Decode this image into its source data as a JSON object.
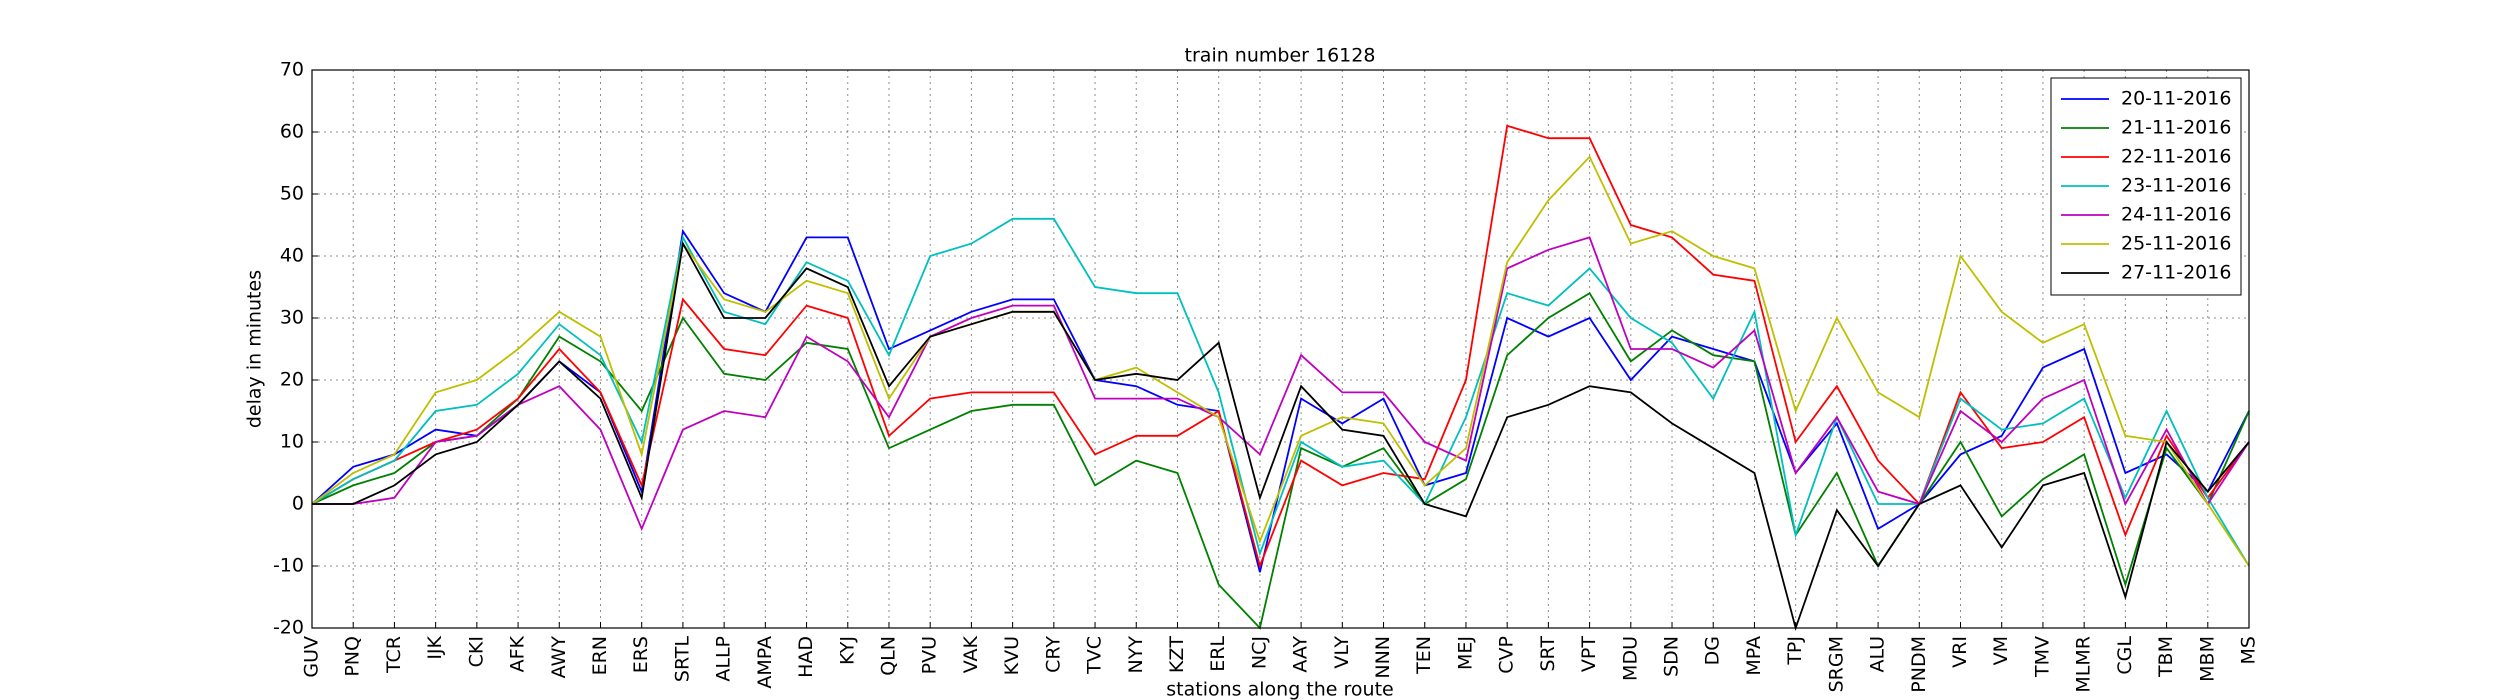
{
  "chart_data": {
    "type": "line",
    "title": "train number 16128",
    "x_label": "stations along the route",
    "y_label": "delay in minutes",
    "categories": [
      "GUV",
      "PNQ",
      "TCR",
      "IJK",
      "CKI",
      "AFK",
      "AWY",
      "ERN",
      "ERS",
      "SRTL",
      "ALLP",
      "AMPA",
      "HAD",
      "KYJ",
      "QLN",
      "PVU",
      "VAK",
      "KVU",
      "CRY",
      "TVC",
      "NYY",
      "KZT",
      "ERL",
      "NCJ",
      "AAY",
      "VLY",
      "NNN",
      "TEN",
      "MEJ",
      "CVP",
      "SRT",
      "VPT",
      "MDU",
      "SDN",
      "DG",
      "MPA",
      "TPJ",
      "SRGM",
      "ALU",
      "PNDM",
      "VRI",
      "VM",
      "TMV",
      "MLMR",
      "CGL",
      "TBM",
      "MBM",
      "MS"
    ],
    "series": [
      {
        "name": "20-11-2016",
        "color": "#0000ff",
        "values": [
          0,
          6,
          8,
          12,
          11,
          16,
          23,
          18,
          2,
          44,
          34,
          31,
          43,
          43,
          25,
          28,
          31,
          33,
          33,
          20,
          19,
          16,
          15,
          -11,
          17,
          13,
          17,
          3,
          5,
          30,
          27,
          30,
          20,
          27,
          25,
          23,
          5,
          13,
          -4,
          0,
          8,
          11,
          22,
          25,
          5,
          8,
          2,
          15
        ]
      },
      {
        "name": "21-11-2016",
        "color": "#008000",
        "values": [
          0,
          3,
          5,
          10,
          11,
          17,
          27,
          23,
          15,
          30,
          21,
          20,
          26,
          25,
          9,
          12,
          15,
          16,
          16,
          3,
          7,
          5,
          -13,
          -20,
          9,
          6,
          9,
          0,
          4,
          24,
          30,
          34,
          23,
          28,
          24,
          23,
          -5,
          5,
          -10,
          0,
          10,
          -2,
          4,
          8,
          -13,
          9,
          0,
          15
        ]
      },
      {
        "name": "22-11-2016",
        "color": "#ff0000",
        "values": [
          0,
          4,
          7,
          10,
          12,
          17,
          25,
          18,
          3,
          33,
          25,
          24,
          32,
          30,
          11,
          17,
          18,
          18,
          18,
          8,
          11,
          11,
          15,
          -10,
          7,
          3,
          5,
          4,
          20,
          61,
          59,
          59,
          45,
          43,
          37,
          36,
          10,
          19,
          7,
          0,
          18,
          9,
          10,
          14,
          -5,
          11,
          1,
          10
        ]
      },
      {
        "name": "23-11-2016",
        "color": "#00bfbf",
        "values": [
          0,
          4,
          7,
          15,
          16,
          21,
          29,
          24,
          10,
          43,
          31,
          29,
          39,
          36,
          24,
          40,
          42,
          46,
          46,
          35,
          34,
          34,
          18,
          -8,
          10,
          6,
          7,
          0,
          14,
          34,
          32,
          38,
          30,
          26,
          17,
          31,
          -5,
          14,
          0,
          0,
          17,
          12,
          13,
          17,
          1,
          15,
          1,
          -10
        ]
      },
      {
        "name": "24-11-2016",
        "color": "#bf00bf",
        "values": [
          0,
          0,
          1,
          10,
          11,
          16,
          19,
          12,
          -4,
          12,
          15,
          14,
          27,
          23,
          14,
          27,
          30,
          32,
          32,
          17,
          17,
          17,
          14,
          8,
          24,
          18,
          18,
          10,
          7,
          38,
          41,
          43,
          25,
          25,
          22,
          28,
          5,
          14,
          2,
          0,
          15,
          10,
          17,
          20,
          0,
          12,
          0,
          10
        ]
      },
      {
        "name": "25-11-2016",
        "color": "#bfbf00",
        "values": [
          0,
          5,
          8,
          18,
          20,
          25,
          31,
          27,
          8,
          42,
          33,
          31,
          36,
          34,
          17,
          27,
          29,
          31,
          31,
          20,
          22,
          18,
          14,
          -6,
          11,
          14,
          13,
          3,
          9,
          39,
          49,
          56,
          42,
          44,
          40,
          38,
          15,
          30,
          18,
          14,
          40,
          31,
          26,
          29,
          11,
          10,
          0,
          -10
        ]
      },
      {
        "name": "27-11-2016",
        "color": "#000000",
        "values": [
          0,
          0,
          3,
          8,
          10,
          16,
          23,
          17,
          1,
          42,
          30,
          30,
          38,
          35,
          19,
          27,
          29,
          31,
          31,
          20,
          21,
          20,
          26,
          1,
          19,
          12,
          11,
          0,
          -2,
          14,
          16,
          19,
          18,
          13,
          9,
          5,
          -20,
          -1,
          -10,
          0,
          3,
          -7,
          3,
          5,
          -15,
          10,
          2,
          10
        ]
      }
    ],
    "ylim": [
      -20,
      70
    ],
    "yticks": [
      -20,
      -10,
      0,
      10,
      20,
      30,
      40,
      50,
      60,
      70
    ],
    "grid": true,
    "legend": "upper right"
  }
}
